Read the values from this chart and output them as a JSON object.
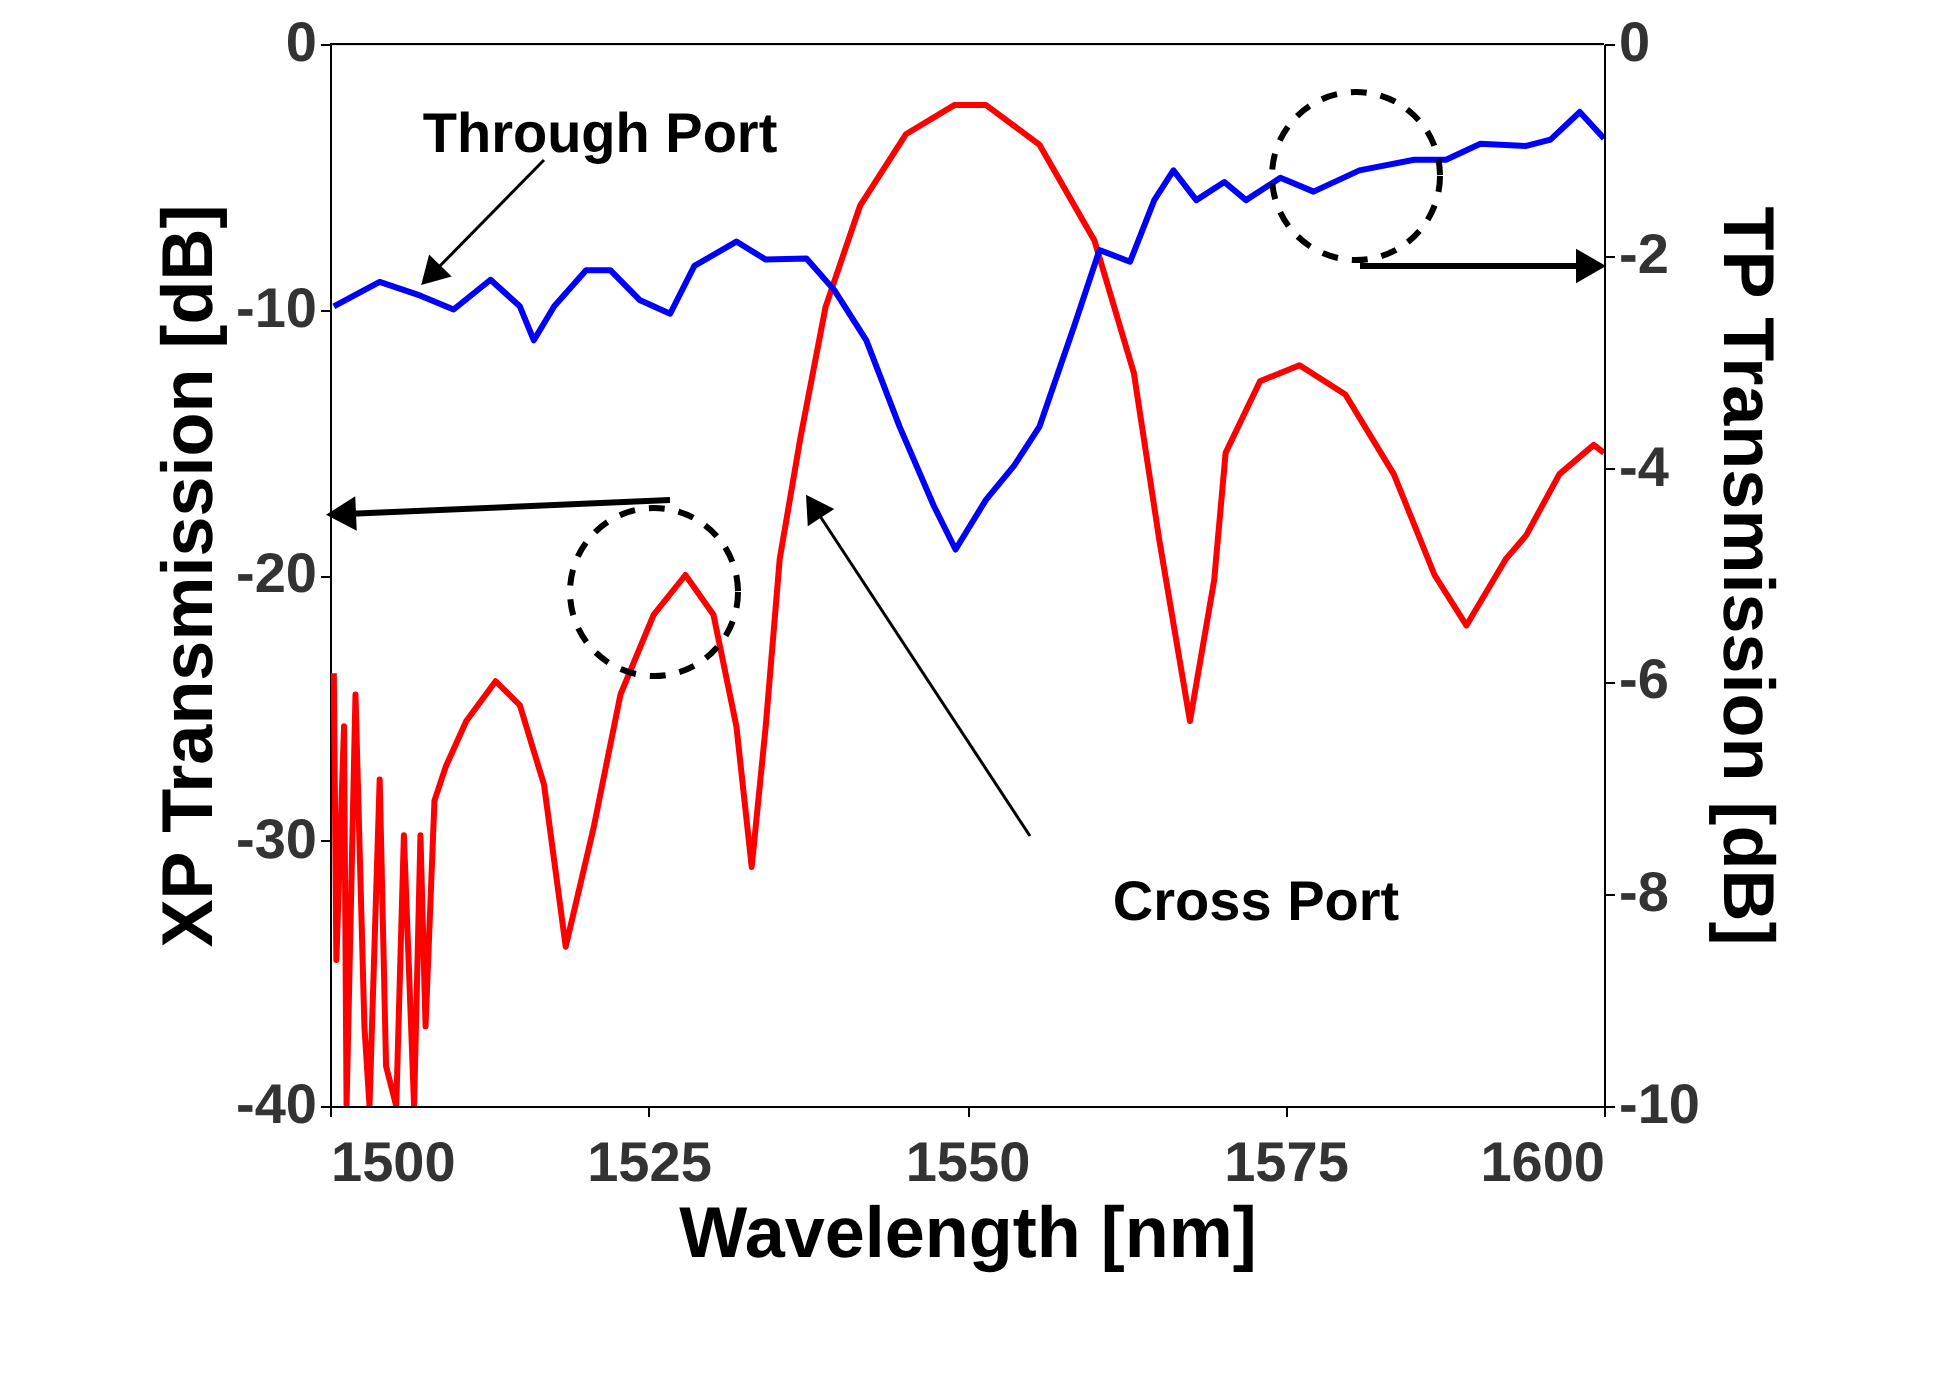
{
  "chart_data": {
    "type": "line",
    "xlabel": "Wavelength [nm]",
    "ylabel": "XP Transmission [dB]",
    "y2label": "TP Transmission [dB]",
    "xlim": [
      1500,
      1600
    ],
    "xticks": [
      1500,
      1525,
      1550,
      1575,
      1600
    ],
    "ylim": [
      -40,
      0
    ],
    "yticks": [
      -40,
      -30,
      -20,
      -10,
      0
    ],
    "y2lim": [
      -10,
      0
    ],
    "y2ticks": [
      -10,
      -8,
      -6,
      -4,
      -2,
      0
    ],
    "line_style": "solid",
    "marker": "none",
    "series": [
      {
        "name": "Cross Port",
        "color": "#ff0000",
        "x": [
          1500.3,
          1500.5,
          1501.1,
          1501.3,
          1502.0,
          1502.7,
          1503.1,
          1503.9,
          1504.4,
          1505.2,
          1505.8,
          1506.6,
          1507.1,
          1507.5,
          1508.2,
          1509.1,
          1510.7,
          1513.0,
          1514.9,
          1516.8,
          1518.5,
          1520.7,
          1522.8,
          1525.4,
          1527.9,
          1530.1,
          1531.9,
          1533.1,
          1534.2,
          1535.3,
          1536.9,
          1538.9,
          1541.6,
          1545.2,
          1549.0,
          1551.5,
          1555.7,
          1560.0,
          1563.1,
          1565.1,
          1567.5,
          1569.4,
          1570.3,
          1573.0,
          1576.1,
          1579.7,
          1583.5,
          1586.7,
          1589.2,
          1592.3,
          1593.9,
          1596.5,
          1599.2,
          1600
        ],
        "values": [
          -23.7,
          -34.5,
          -25.7,
          -40,
          -24.5,
          -37.0,
          -40,
          -27.7,
          -38.5,
          -40,
          -29.8,
          -40,
          -29.8,
          -37,
          -28.5,
          -27.2,
          -25.5,
          -24.0,
          -24.9,
          -27.9,
          -34.0,
          -29.5,
          -24.5,
          -21.5,
          -20.0,
          -21.5,
          -25.7,
          -31.0,
          -25.7,
          -19.4,
          -14.9,
          -9.9,
          -6.1,
          -3.4,
          -2.3,
          -2.3,
          -3.8,
          -7.4,
          -12.4,
          -18.7,
          -25.5,
          -20.2,
          -15.4,
          -12.7,
          -12.1,
          -13.2,
          -16.2,
          -20.0,
          -21.9,
          -19.4,
          -18.5,
          -16.2,
          -15.1,
          -15.4
        ]
      },
      {
        "name": "Through Port",
        "color": "#0000ff",
        "axis": "y2",
        "x": [
          1500.3,
          1503.9,
          1507.1,
          1509.7,
          1512.6,
          1514.9,
          1516.0,
          1517.6,
          1520.1,
          1522.0,
          1524.3,
          1526.7,
          1528.6,
          1531.9,
          1534.2,
          1537.4,
          1539.6,
          1542.1,
          1544.7,
          1547.4,
          1549.1,
          1551.5,
          1553.7,
          1555.7,
          1558.4,
          1560.4,
          1562.8,
          1564.7,
          1566.2,
          1568.0,
          1570.2,
          1571.9,
          1574.6,
          1577.2,
          1580.8,
          1585.1,
          1587.6,
          1590.3,
          1593.9,
          1595.8,
          1598.1,
          1600
        ],
        "values": [
          -2.47,
          -2.24,
          -2.37,
          -2.5,
          -2.22,
          -2.47,
          -2.79,
          -2.47,
          -2.13,
          -2.13,
          -2.41,
          -2.54,
          -2.09,
          -1.86,
          -2.03,
          -2.02,
          -2.32,
          -2.79,
          -3.6,
          -4.35,
          -4.76,
          -4.29,
          -3.97,
          -3.6,
          -2.66,
          -1.94,
          -2.05,
          -1.47,
          -1.19,
          -1.47,
          -1.3,
          -1.47,
          -1.26,
          -1.39,
          -1.19,
          -1.09,
          -1.09,
          -0.94,
          -0.96,
          -0.9,
          -0.64,
          -0.89
        ]
      }
    ]
  }
}
